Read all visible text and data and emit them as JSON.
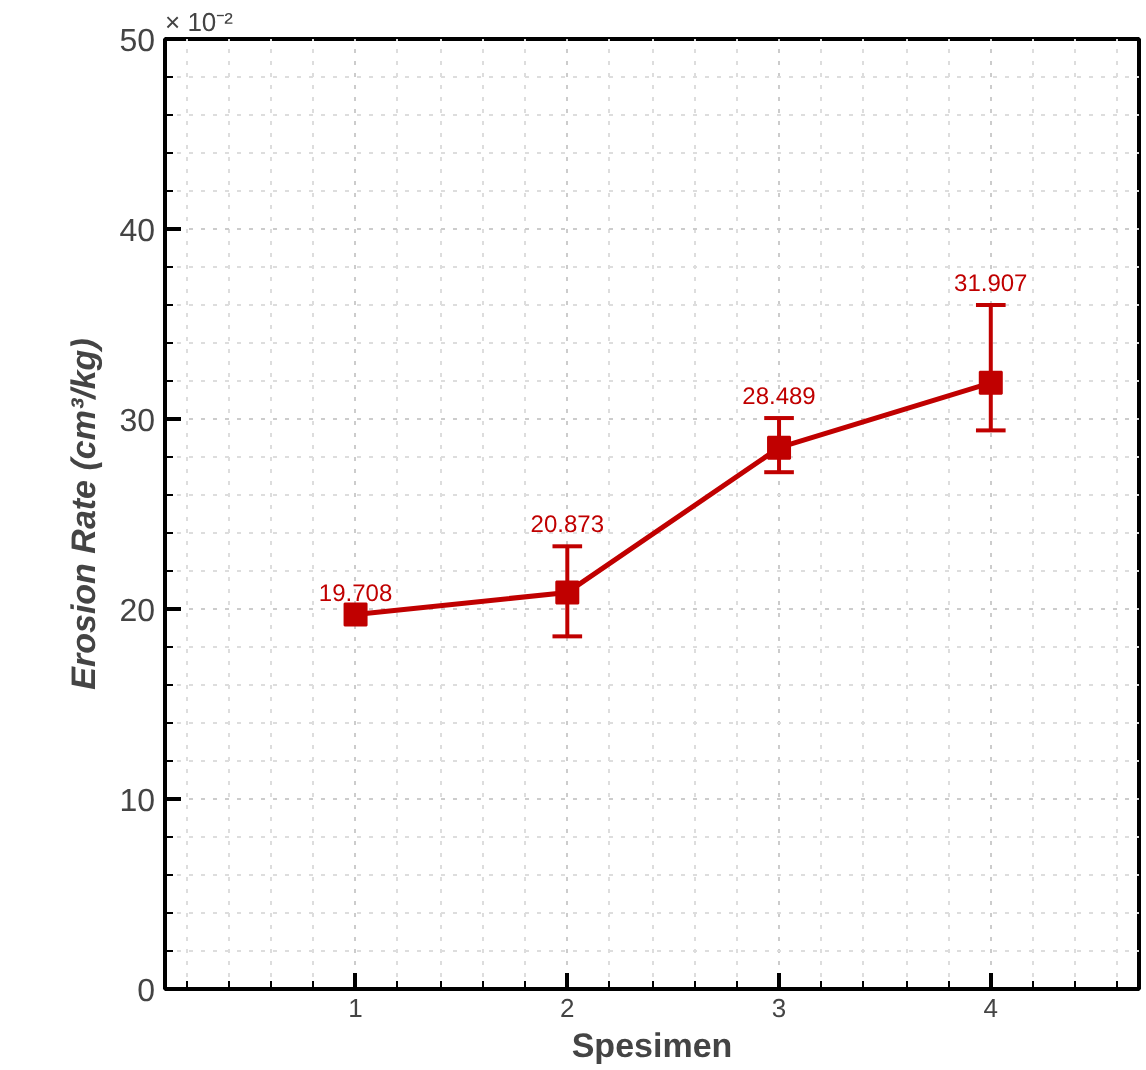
{
  "chart_data": {
    "type": "line",
    "xlabel": "Spesimen",
    "ylabel": "Erosion Rate (cm³/kg)",
    "annotations": [
      "× 10⁻²"
    ],
    "x": [
      1,
      2,
      3,
      4
    ],
    "series": [
      {
        "color": "#c00000",
        "values": [
          19.708,
          20.873,
          28.489,
          31.907
        ],
        "errors": [
          null,
          [
            18.56,
            23.3
          ],
          [
            27.2,
            30.05
          ],
          [
            29.4,
            36.0
          ]
        ]
      }
    ],
    "xlim": [
      0.1,
      4.7
    ],
    "ylim": [
      0,
      50
    ],
    "xticks": [
      1,
      2,
      3,
      4
    ],
    "yticks": [
      0,
      10,
      20,
      30,
      40,
      50
    ],
    "grid": true,
    "marker": "square",
    "line_style": "solid",
    "data_labels": true
  }
}
